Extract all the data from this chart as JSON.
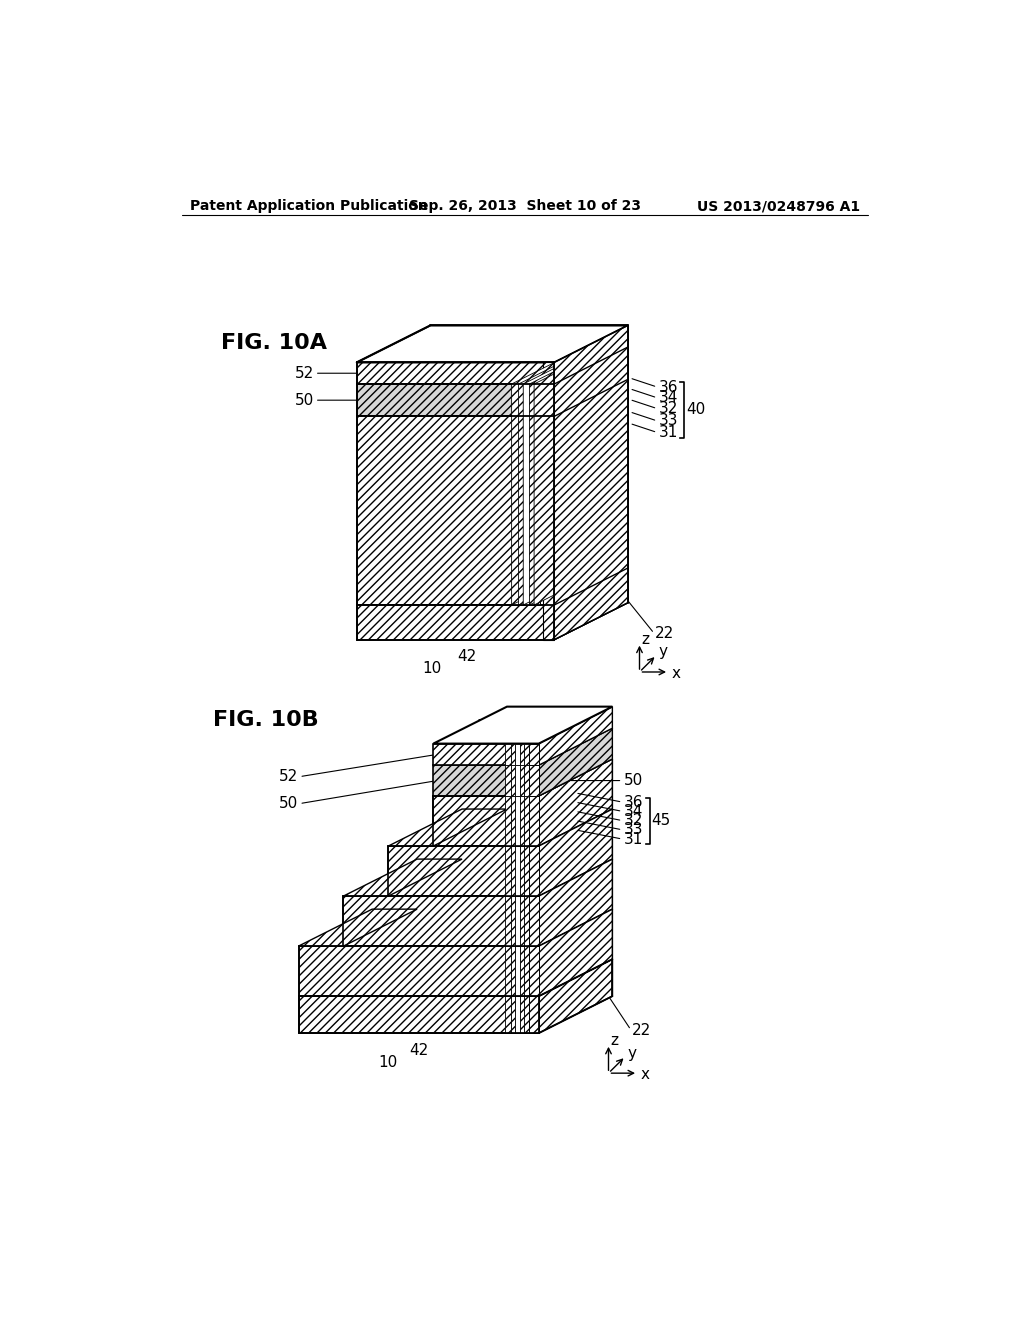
{
  "background_color": "#ffffff",
  "header_left": "Patent Application Publication",
  "header_mid": "Sep. 26, 2013  Sheet 10 of 23",
  "header_right": "US 2013/0248796 A1",
  "fig_label_A": "FIG. 10A",
  "fig_label_B": "FIG. 10B"
}
